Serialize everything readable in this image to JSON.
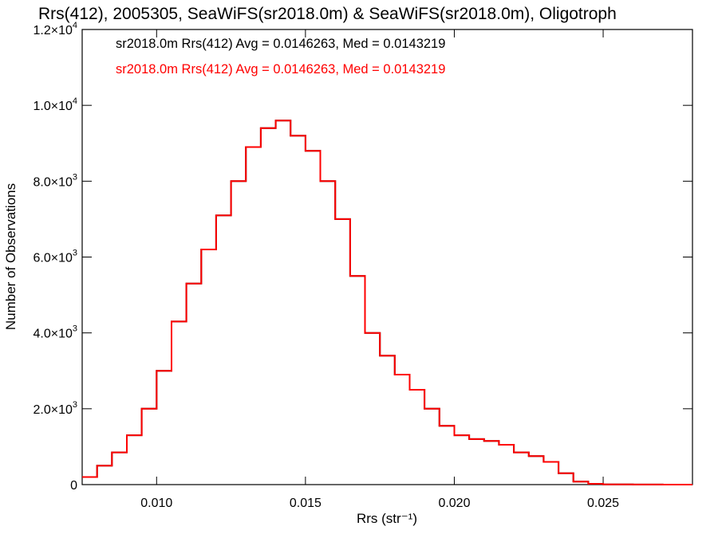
{
  "chart_data": {
    "type": "line",
    "style": "step",
    "title": "Rrs(412), 2005305, SeaWiFS(sr2018.0m) & SeaWiFS(sr2018.0m), Oligotroph",
    "xlabel": "Rrs (str⁻¹)",
    "ylabel": "Number of Observations",
    "xlim": [
      0.0075,
      0.028
    ],
    "ylim": [
      0,
      12000
    ],
    "log_scale": false,
    "grid": false,
    "x_ticks": [
      {
        "value": 0.01,
        "label": "0.010"
      },
      {
        "value": 0.015,
        "label": "0.015"
      },
      {
        "value": 0.02,
        "label": "0.020"
      },
      {
        "value": 0.025,
        "label": "0.025"
      }
    ],
    "y_ticks": [
      {
        "value": 0,
        "mant": "0",
        "exp": ""
      },
      {
        "value": 2000,
        "mant": "2.0×10",
        "exp": "3"
      },
      {
        "value": 4000,
        "mant": "4.0×10",
        "exp": "3"
      },
      {
        "value": 6000,
        "mant": "6.0×10",
        "exp": "3"
      },
      {
        "value": 8000,
        "mant": "8.0×10",
        "exp": "3"
      },
      {
        "value": 10000,
        "mant": "1.0×10",
        "exp": "4"
      },
      {
        "value": 12000,
        "mant": "1.2×10",
        "exp": "4"
      }
    ],
    "annotations": [
      {
        "text": "sr2018.0m Rrs(412) Avg = 0.0146263, Med = 0.0143219",
        "color": "#000000"
      },
      {
        "text": "sr2018.0m Rrs(412) Avg = 0.0146263, Med = 0.0143219",
        "color": "#ff0000"
      }
    ],
    "series": [
      {
        "color": "#000000",
        "x": [
          0.0075,
          0.008,
          0.0085,
          0.009,
          0.0095,
          0.01,
          0.0105,
          0.011,
          0.0115,
          0.012,
          0.0125,
          0.013,
          0.0135,
          0.014,
          0.0145,
          0.015,
          0.0155,
          0.016,
          0.0165,
          0.017,
          0.0175,
          0.018,
          0.0185,
          0.019,
          0.0195,
          0.02,
          0.0205,
          0.021,
          0.0215,
          0.022,
          0.0225,
          0.023,
          0.0235,
          0.024,
          0.0245,
          0.025,
          0.026,
          0.027,
          0.028
        ],
        "y": [
          200,
          500,
          850,
          1300,
          2000,
          3000,
          4300,
          5300,
          6200,
          7100,
          8000,
          8900,
          9400,
          9600,
          9200,
          8800,
          8000,
          7000,
          5500,
          4000,
          3400,
          2900,
          2500,
          2000,
          1550,
          1300,
          1200,
          1150,
          1050,
          850,
          750,
          600,
          300,
          80,
          20,
          5,
          2,
          1,
          0
        ]
      },
      {
        "color": "#ff0000",
        "x": [
          0.0075,
          0.008,
          0.0085,
          0.009,
          0.0095,
          0.01,
          0.0105,
          0.011,
          0.0115,
          0.012,
          0.0125,
          0.013,
          0.0135,
          0.014,
          0.0145,
          0.015,
          0.0155,
          0.016,
          0.0165,
          0.017,
          0.0175,
          0.018,
          0.0185,
          0.019,
          0.0195,
          0.02,
          0.0205,
          0.021,
          0.0215,
          0.022,
          0.0225,
          0.023,
          0.0235,
          0.024,
          0.0245,
          0.025,
          0.026,
          0.027,
          0.028
        ],
        "y": [
          200,
          500,
          850,
          1300,
          2000,
          3000,
          4300,
          5300,
          6200,
          7100,
          8000,
          8900,
          9400,
          9600,
          9200,
          8800,
          8000,
          7000,
          5500,
          4000,
          3400,
          2900,
          2500,
          2000,
          1550,
          1300,
          1200,
          1150,
          1050,
          850,
          750,
          600,
          300,
          80,
          20,
          5,
          2,
          1,
          0
        ]
      }
    ]
  }
}
